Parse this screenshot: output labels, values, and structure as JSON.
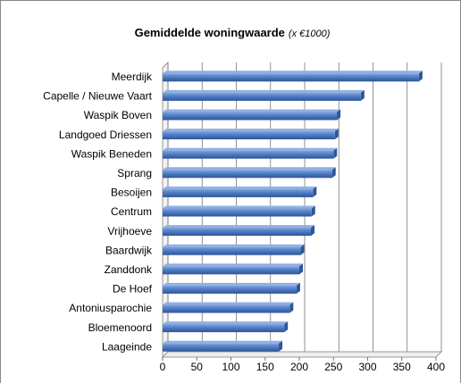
{
  "chart_data": {
    "type": "bar",
    "orientation": "horizontal",
    "title": "Gemiddelde woningwaarde",
    "subtitle": "(x €1000)",
    "categories": [
      "Meerdijk",
      "Capelle / Nieuwe Vaart",
      "Waspik Boven",
      "Landgoed Driessen",
      "Waspik Beneden",
      "Sprang",
      "Besoijen",
      "Centrum",
      "Vrijhoeve",
      "Baardwijk",
      "Zanddonk",
      "De Hoef",
      "Antoniusparochie",
      "Bloemenoord",
      "Laageinde"
    ],
    "values": [
      375,
      290,
      255,
      252,
      250,
      248,
      220,
      218,
      217,
      202,
      200,
      196,
      186,
      178,
      170
    ],
    "color": "#4a78c2",
    "xlim": [
      0,
      400
    ],
    "xticks": [
      0,
      50,
      100,
      150,
      200,
      250,
      300,
      350,
      400
    ],
    "grid": true
  }
}
